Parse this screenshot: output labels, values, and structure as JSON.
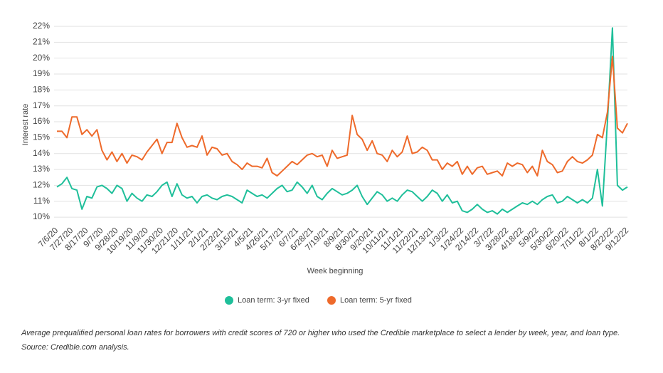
{
  "chart_data": {
    "type": "line",
    "y_label": "Interest rate",
    "x_label": "Week beginning",
    "caption": "Average prequalified personal loan rates for borrowers with credit scores of 720 or higher who used the Credible marketplace to select a lender by week, year, and loan type. Source: Credible.com analysis.",
    "categories": [
      "7/6/20",
      null,
      null,
      "7/27/20",
      null,
      null,
      "8/17/20",
      null,
      null,
      "9/7/20",
      null,
      null,
      "9/28/20",
      null,
      null,
      "10/19/20",
      null,
      null,
      "11/9/20",
      null,
      null,
      "11/30/20",
      null,
      null,
      "12/21/20",
      null,
      null,
      "1/11/21",
      null,
      null,
      "2/1/21",
      null,
      null,
      "2/22/21",
      null,
      null,
      "3/15/21",
      null,
      null,
      "4/5/21",
      null,
      null,
      "4/26/21",
      null,
      null,
      "5/17/21",
      null,
      null,
      "6/7/21",
      null,
      null,
      "6/28/21",
      null,
      null,
      "7/19/21",
      null,
      null,
      "8/9/21",
      null,
      null,
      "8/30/21",
      null,
      null,
      "9/20/21",
      null,
      null,
      "10/11/21",
      null,
      null,
      "11/1/21",
      null,
      null,
      "11/22/21",
      null,
      null,
      "12/13/21",
      null,
      null,
      "1/3/22",
      null,
      null,
      "1/24/22",
      null,
      null,
      "2/14/22",
      null,
      null,
      "3/7/22",
      null,
      null,
      "3/28/22",
      null,
      null,
      "4/18/22",
      null,
      null,
      "5/9/22",
      null,
      null,
      "5/30/22",
      null,
      null,
      "6/20/22",
      null,
      null,
      "7/11/22",
      null,
      null,
      "8/1/22",
      null,
      null,
      "8/22/22",
      null,
      null,
      "9/12/22"
    ],
    "series": [
      {
        "name": "Loan term: 3-yr fixed",
        "color": "#1fbf9a",
        "values": [
          11.9,
          12.1,
          12.5,
          11.8,
          11.7,
          10.5,
          11.3,
          11.2,
          11.9,
          12.0,
          11.8,
          11.5,
          12.0,
          11.8,
          11.0,
          11.5,
          11.2,
          11.0,
          11.4,
          11.3,
          11.6,
          12.0,
          12.2,
          11.3,
          12.1,
          11.4,
          11.2,
          11.3,
          10.9,
          11.3,
          11.4,
          11.2,
          11.1,
          11.3,
          11.4,
          11.3,
          11.1,
          10.9,
          11.7,
          11.5,
          11.3,
          11.4,
          11.2,
          11.5,
          11.8,
          12.0,
          11.6,
          11.7,
          12.2,
          11.9,
          11.5,
          12.0,
          11.3,
          11.1,
          11.5,
          11.8,
          11.6,
          11.4,
          11.5,
          11.7,
          12.0,
          11.3,
          10.8,
          11.2,
          11.6,
          11.4,
          11.0,
          11.2,
          11.0,
          11.4,
          11.7,
          11.6,
          11.3,
          11.0,
          11.3,
          11.7,
          11.5,
          11.0,
          11.4,
          10.9,
          11.0,
          10.4,
          10.3,
          10.5,
          10.8,
          10.5,
          10.3,
          10.4,
          10.2,
          10.5,
          10.3,
          10.5,
          10.7,
          10.9,
          10.8,
          11.0,
          10.8,
          11.1,
          11.3,
          11.4,
          10.9,
          11.0,
          11.3,
          11.1,
          10.9,
          11.1,
          10.9,
          11.2,
          13.0,
          10.7,
          16.0,
          21.9,
          12.0,
          11.7,
          11.9
        ]
      },
      {
        "name": "Loan term: 5-yr fixed",
        "color": "#ee6a2b",
        "values": [
          15.4,
          15.4,
          15.0,
          16.3,
          16.3,
          15.2,
          15.5,
          15.1,
          15.5,
          14.2,
          13.6,
          14.1,
          13.5,
          14.0,
          13.4,
          13.9,
          13.8,
          13.6,
          14.1,
          14.5,
          14.9,
          14.0,
          14.7,
          14.7,
          15.9,
          15.0,
          14.4,
          14.5,
          14.4,
          15.1,
          13.9,
          14.4,
          14.3,
          13.9,
          14.0,
          13.5,
          13.3,
          13.0,
          13.4,
          13.2,
          13.2,
          13.1,
          13.7,
          12.8,
          12.6,
          12.9,
          13.2,
          13.5,
          13.3,
          13.6,
          13.9,
          14.0,
          13.8,
          13.9,
          13.2,
          14.2,
          13.7,
          13.8,
          13.9,
          16.4,
          15.2,
          14.9,
          14.2,
          14.8,
          14.0,
          13.9,
          13.5,
          14.2,
          13.8,
          14.1,
          15.1,
          14.0,
          14.1,
          14.4,
          14.2,
          13.6,
          13.6,
          13.0,
          13.4,
          13.2,
          13.5,
          12.7,
          13.2,
          12.7,
          13.1,
          13.2,
          12.7,
          12.8,
          12.9,
          12.6,
          13.4,
          13.2,
          13.4,
          13.3,
          12.8,
          13.2,
          12.6,
          14.2,
          13.5,
          13.3,
          12.8,
          12.9,
          13.5,
          13.8,
          13.5,
          13.4,
          13.6,
          13.9,
          15.2,
          15.0,
          16.6,
          20.1,
          15.6,
          15.3,
          15.9
        ]
      }
    ],
    "ylim": [
      9.6,
      22
    ],
    "yticks": [
      {
        "value": 10,
        "label": "10%"
      },
      {
        "value": 11,
        "label": "11%"
      },
      {
        "value": 12,
        "label": "12%"
      },
      {
        "value": 13,
        "label": "13%"
      },
      {
        "value": 14,
        "label": "14%"
      },
      {
        "value": 15,
        "label": "15%"
      },
      {
        "value": 16,
        "label": "16%"
      },
      {
        "value": 17,
        "label": "17%"
      },
      {
        "value": 18,
        "label": "18%"
      },
      {
        "value": 19,
        "label": "19%"
      },
      {
        "value": 20,
        "label": "20%"
      },
      {
        "value": 21,
        "label": "21%"
      },
      {
        "value": 22,
        "label": "22%"
      }
    ],
    "grid": true
  }
}
